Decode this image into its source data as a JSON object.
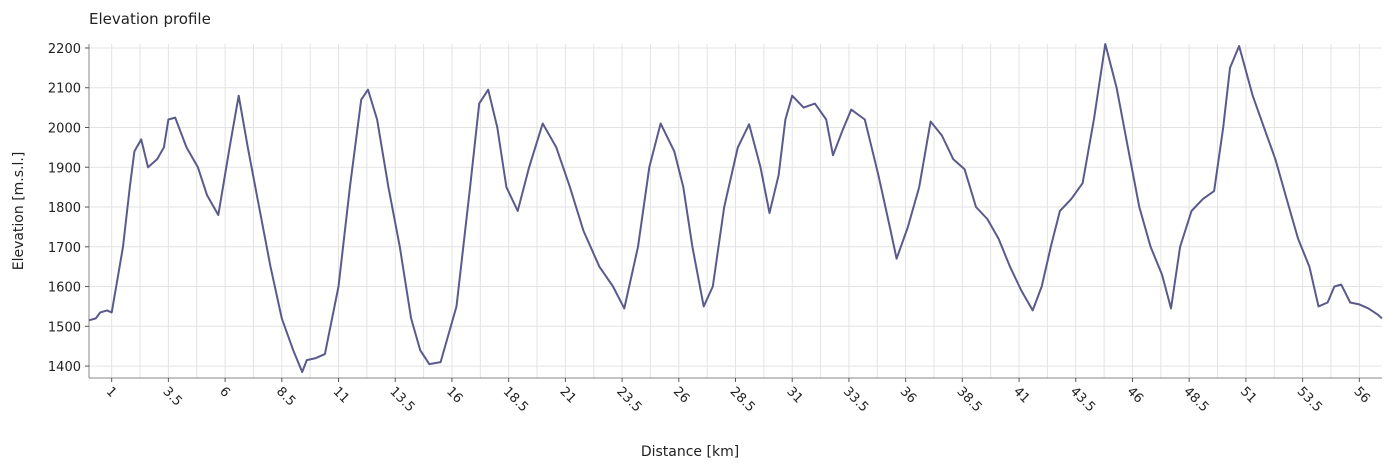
{
  "chart_data": {
    "type": "line",
    "title": "Elevation profile",
    "xlabel": "Distance [km]",
    "ylabel": "Elevation [m.s.l.]",
    "xlim": [
      0,
      57
    ],
    "ylim": [
      1370,
      2210
    ],
    "xticks": [
      "1",
      "3.5",
      "6",
      "8.5",
      "11",
      "13.5",
      "16",
      "18.5",
      "21",
      "23.5",
      "26",
      "28.5",
      "31",
      "33.5",
      "36",
      "38.5",
      "41",
      "43.5",
      "46",
      "48.5",
      "51",
      "53.5",
      "56"
    ],
    "yticks": [
      "1400",
      "1500",
      "1600",
      "1700",
      "1800",
      "1900",
      "2000",
      "2100",
      "2200"
    ],
    "grid": true,
    "colors": {
      "line": "#5a5a8c"
    },
    "series": [
      {
        "x": [
          0,
          0.3,
          0.5,
          0.8,
          1.0,
          1.2,
          1.5,
          1.8,
          2.0,
          2.3,
          2.6,
          3.0,
          3.3,
          3.5,
          3.8,
          4.3,
          4.8,
          5.2,
          5.7,
          6.2,
          6.6,
          7.0,
          7.5,
          8.0,
          8.5,
          9.0,
          9.4,
          9.6,
          10.0,
          10.4,
          11.0,
          11.5,
          12.0,
          12.3,
          12.7,
          13.2,
          13.7,
          14.2,
          14.6,
          15.0,
          15.5,
          16.2,
          16.8,
          17.2,
          17.6,
          18.0,
          18.4,
          18.9,
          19.4,
          20.0,
          20.6,
          21.2,
          21.8,
          22.5,
          23.1,
          23.6,
          24.2,
          24.7,
          25.2,
          25.8,
          26.2,
          26.6,
          27.1,
          27.5,
          28.0,
          28.6,
          29.1,
          29.6,
          30.0,
          30.4,
          30.7,
          31.0,
          31.5,
          32.0,
          32.5,
          32.8,
          33.2,
          33.6,
          34.2,
          34.8,
          35.3,
          35.6,
          36.1,
          36.6,
          37.1,
          37.6,
          38.1,
          38.6,
          39.1,
          39.6,
          40.1,
          40.6,
          41.1,
          41.6,
          42.0,
          42.4,
          42.8,
          43.3,
          43.8,
          44.3,
          44.8,
          45.3,
          45.8,
          46.3,
          46.8,
          47.3,
          47.7,
          48.1,
          48.6,
          49.1,
          49.6,
          50.0,
          50.3,
          50.7,
          51.3,
          51.8,
          52.3,
          52.8,
          53.3,
          53.8,
          54.2,
          54.6,
          54.9,
          55.2,
          55.6,
          56.0,
          56.4,
          56.8,
          57.0
        ],
        "y": [
          1515,
          1520,
          1535,
          1540,
          1535,
          1600,
          1700,
          1850,
          1940,
          1970,
          1900,
          1920,
          1950,
          2020,
          2025,
          1950,
          1900,
          1830,
          1780,
          1950,
          2080,
          1950,
          1800,
          1650,
          1520,
          1440,
          1385,
          1415,
          1420,
          1430,
          1600,
          1850,
          2070,
          2095,
          2020,
          1850,
          1700,
          1520,
          1440,
          1405,
          1410,
          1550,
          1850,
          2060,
          2095,
          2000,
          1850,
          1790,
          1900,
          2010,
          1950,
          1850,
          1740,
          1650,
          1600,
          1545,
          1700,
          1900,
          2010,
          1940,
          1850,
          1700,
          1550,
          1600,
          1800,
          1950,
          2008,
          1900,
          1785,
          1880,
          2020,
          2080,
          2050,
          2060,
          2020,
          1930,
          1990,
          2045,
          2020,
          1880,
          1750,
          1670,
          1750,
          1850,
          2015,
          1980,
          1920,
          1895,
          1800,
          1770,
          1720,
          1650,
          1590,
          1540,
          1600,
          1700,
          1790,
          1820,
          1860,
          2020,
          2210,
          2100,
          1950,
          1800,
          1700,
          1630,
          1545,
          1700,
          1790,
          1820,
          1840,
          2000,
          2150,
          2205,
          2080,
          2000,
          1920,
          1820,
          1720,
          1650,
          1550,
          1560,
          1600,
          1605,
          1560,
          1555,
          1545,
          1530,
          1520
        ]
      }
    ]
  }
}
